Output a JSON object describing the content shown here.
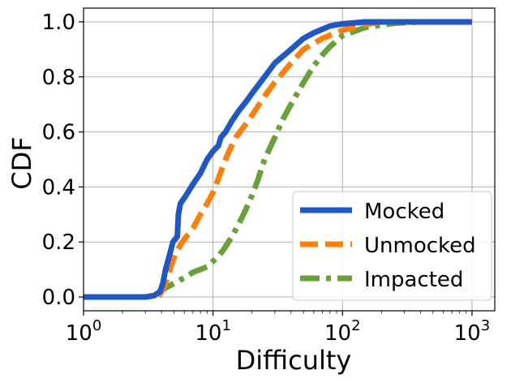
{
  "chart_data": {
    "type": "line",
    "xlabel": "Difficulty",
    "ylabel": "CDF",
    "xscale": "log",
    "xlim": [
      1,
      1500
    ],
    "ylim": [
      -0.05,
      1.05
    ],
    "grid": true,
    "legend_position": "lower-right",
    "x_ticks": [
      {
        "value": 1,
        "base": "10",
        "exp": "0"
      },
      {
        "value": 10,
        "base": "10",
        "exp": "1"
      },
      {
        "value": 100,
        "base": "10",
        "exp": "2"
      },
      {
        "value": 1000,
        "base": "10",
        "exp": "3"
      }
    ],
    "y_ticks": [
      {
        "value": 0.0,
        "label": "0.0"
      },
      {
        "value": 0.2,
        "label": "0.2"
      },
      {
        "value": 0.4,
        "label": "0.4"
      },
      {
        "value": 0.6,
        "label": "0.6"
      },
      {
        "value": 0.8,
        "label": "0.8"
      },
      {
        "value": 1.0,
        "label": "1.0"
      }
    ],
    "series": [
      {
        "name": "Mocked",
        "color": "#1f57c3",
        "style": "solid",
        "points": [
          [
            1,
            0
          ],
          [
            2,
            0
          ],
          [
            3,
            0
          ],
          [
            3.5,
            0.005
          ],
          [
            3.9,
            0.02
          ],
          [
            4.1,
            0.05
          ],
          [
            4.3,
            0.1
          ],
          [
            4.6,
            0.15
          ],
          [
            4.9,
            0.2
          ],
          [
            5.1,
            0.21
          ],
          [
            5.3,
            0.22
          ],
          [
            5.4,
            0.3
          ],
          [
            5.6,
            0.34
          ],
          [
            6.2,
            0.37
          ],
          [
            7,
            0.41
          ],
          [
            8,
            0.45
          ],
          [
            9,
            0.5
          ],
          [
            10,
            0.53
          ],
          [
            11,
            0.55
          ],
          [
            11.5,
            0.58
          ],
          [
            12.5,
            0.6
          ],
          [
            14,
            0.64
          ],
          [
            16,
            0.68
          ],
          [
            18,
            0.71
          ],
          [
            20,
            0.74
          ],
          [
            25,
            0.8
          ],
          [
            30,
            0.85
          ],
          [
            40,
            0.9
          ],
          [
            50,
            0.94
          ],
          [
            60,
            0.96
          ],
          [
            80,
            0.985
          ],
          [
            100,
            0.993
          ],
          [
            150,
            1.0
          ],
          [
            1000,
            1.0
          ]
        ]
      },
      {
        "name": "Unmocked",
        "color": "#ff7f0e",
        "style": "dashed",
        "points": [
          [
            1,
            0
          ],
          [
            2,
            0
          ],
          [
            3,
            0
          ],
          [
            3.5,
            0.005
          ],
          [
            3.9,
            0.01
          ],
          [
            4.3,
            0.05
          ],
          [
            4.8,
            0.12
          ],
          [
            5.2,
            0.16
          ],
          [
            5.6,
            0.19
          ],
          [
            6,
            0.21
          ],
          [
            7,
            0.25
          ],
          [
            8,
            0.3
          ],
          [
            9,
            0.34
          ],
          [
            10,
            0.38
          ],
          [
            11,
            0.43
          ],
          [
            12,
            0.48
          ],
          [
            13,
            0.52
          ],
          [
            15,
            0.58
          ],
          [
            18,
            0.63
          ],
          [
            20,
            0.66
          ],
          [
            25,
            0.73
          ],
          [
            30,
            0.78
          ],
          [
            40,
            0.85
          ],
          [
            50,
            0.9
          ],
          [
            70,
            0.94
          ],
          [
            100,
            0.97
          ],
          [
            150,
            0.99
          ],
          [
            200,
            1.0
          ],
          [
            1000,
            1.0
          ]
        ]
      },
      {
        "name": "Impacted",
        "color": "#6aa03a",
        "style": "dashdot",
        "points": [
          [
            1,
            0
          ],
          [
            2,
            0
          ],
          [
            3,
            0
          ],
          [
            3.6,
            0.005
          ],
          [
            4.2,
            0.03
          ],
          [
            5,
            0.05
          ],
          [
            6,
            0.07
          ],
          [
            7,
            0.09
          ],
          [
            8,
            0.1
          ],
          [
            9,
            0.11
          ],
          [
            10,
            0.13
          ],
          [
            11,
            0.15
          ],
          [
            12,
            0.17
          ],
          [
            14,
            0.22
          ],
          [
            16,
            0.27
          ],
          [
            18,
            0.32
          ],
          [
            20,
            0.37
          ],
          [
            22,
            0.42
          ],
          [
            25,
            0.5
          ],
          [
            30,
            0.58
          ],
          [
            35,
            0.65
          ],
          [
            40,
            0.7
          ],
          [
            50,
            0.78
          ],
          [
            60,
            0.84
          ],
          [
            70,
            0.88
          ],
          [
            80,
            0.91
          ],
          [
            100,
            0.95
          ],
          [
            150,
            0.98
          ],
          [
            250,
            0.995
          ],
          [
            400,
            1.0
          ],
          [
            1000,
            1.0
          ]
        ]
      }
    ]
  }
}
